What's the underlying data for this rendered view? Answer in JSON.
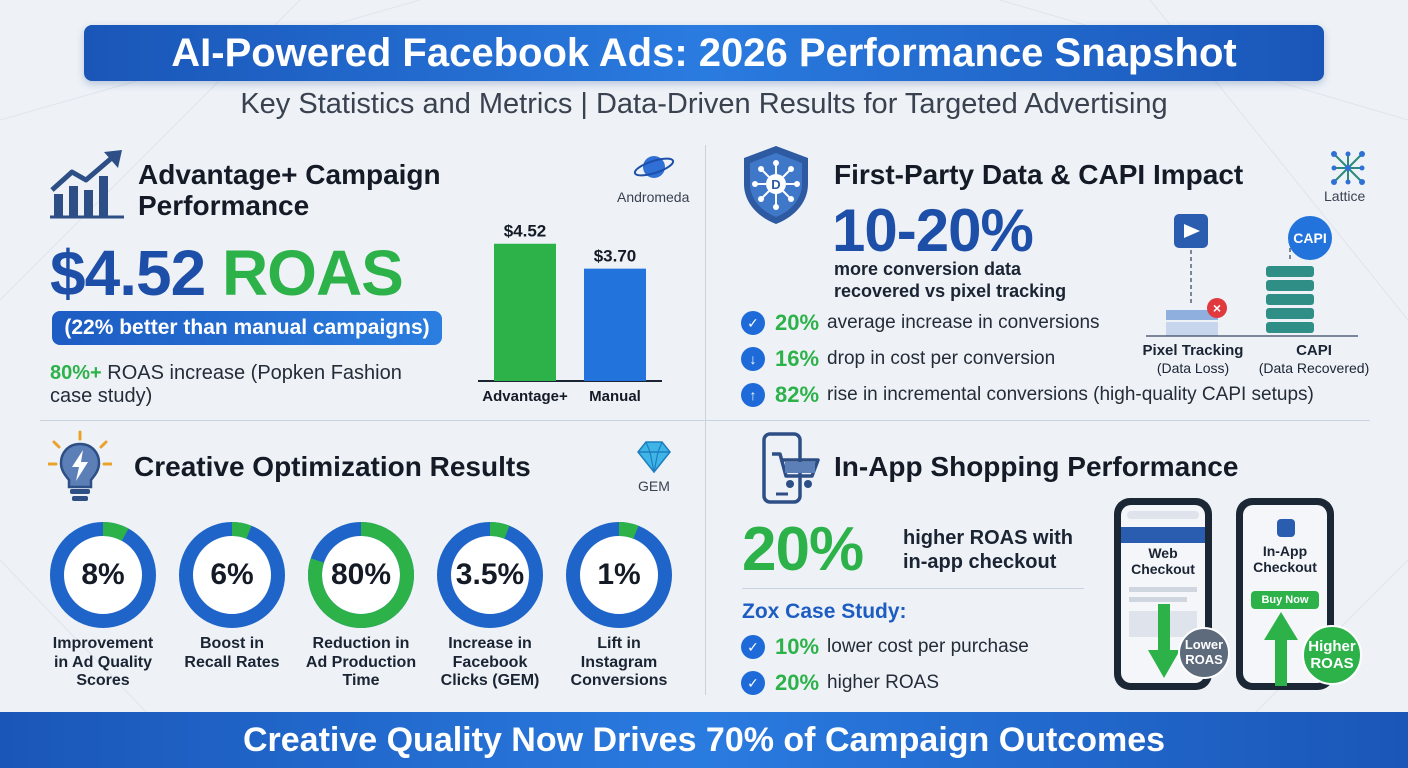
{
  "header": {
    "title": "AI-Powered Facebook Ads: 2026 Performance Snapshot",
    "subtitle": "Key Statistics and Metrics | Data-Driven Results for Targeted Advertising"
  },
  "advantage": {
    "title_line1": "Advantage+ Campaign",
    "title_line2": "Performance",
    "logo_label": "Andromeda",
    "roas_value": "$4.52",
    "roas_unit": "ROAS",
    "pill": "(22% better than manual campaigns)",
    "note_value": "80%+",
    "note_line1": " ROAS increase (Popken Fashion",
    "note_line2": "case study)"
  },
  "chart_data": {
    "type": "bar",
    "categories": [
      "Advantage+",
      "Manual"
    ],
    "values": [
      4.52,
      3.7
    ],
    "value_labels": [
      "$4.52",
      "$3.70"
    ],
    "ylim": [
      0,
      5
    ],
    "colors": [
      "#2db24a",
      "#2274dc"
    ],
    "grid": false,
    "title": "",
    "xlabel": "",
    "ylabel": ""
  },
  "capi": {
    "title": "First-Party Data & CAPI Impact",
    "logo_label": "Lattice",
    "big_value": "10-20%",
    "desc_line1": "more conversion data",
    "desc_line2": "recovered vs pixel tracking",
    "stats": [
      {
        "icon": "check-icon",
        "glyph": "✓",
        "value": "20%",
        "text": "average increase in conversions"
      },
      {
        "icon": "arrow-down-icon",
        "glyph": "↓",
        "value": "16%",
        "text": "drop in cost per conversion"
      },
      {
        "icon": "arrow-up-icon",
        "glyph": "↑",
        "value": "82%",
        "text": "rise in incremental conversions (high-quality CAPI setups)"
      }
    ],
    "pixel_label": "Pixel Tracking",
    "pixel_sub": "(Data Loss)",
    "capi_badge": "CAPI",
    "capi_label": "CAPI",
    "capi_sub": "(Data Recovered)"
  },
  "creative": {
    "title": "Creative Optimization Results",
    "logo_label": "GEM",
    "rings": [
      {
        "value": "8%",
        "fraction": 0.08,
        "label": [
          "Improvement",
          "in Ad Quality",
          "Scores"
        ]
      },
      {
        "value": "6%",
        "fraction": 0.06,
        "label": [
          "Boost in",
          "Recall Rates"
        ]
      },
      {
        "value": "80%",
        "fraction": 0.8,
        "label": [
          "Reduction in",
          "Ad Production",
          "Time"
        ]
      },
      {
        "value": "3.5%",
        "fraction": 0.035,
        "label": [
          "Increase in",
          "Facebook",
          "Clicks (GEM)"
        ]
      },
      {
        "value": "1%",
        "fraction": 0.01,
        "label": [
          "Lift in",
          "Instagram",
          "Conversions"
        ]
      }
    ]
  },
  "inapp": {
    "title": "In-App Shopping Performance",
    "big_value": "20%",
    "desc_line1": "higher ROAS with",
    "desc_line2": "in-app checkout",
    "case_title": "Zox Case Study:",
    "case_items": [
      {
        "value": "10%",
        "text": "lower cost per purchase"
      },
      {
        "value": "20%",
        "text": "higher ROAS"
      }
    ],
    "web_phone_line1": "Web",
    "web_phone_line2": "Checkout",
    "app_phone_line1": "In-App",
    "app_phone_line2": "Checkout",
    "buy_now": "Buy Now",
    "lower_line1": "Lower",
    "lower_line2": "ROAS",
    "higher_line1": "Higher",
    "higher_line2": "ROAS"
  },
  "footer": {
    "text": "Creative Quality Now Drives 70% of Campaign Outcomes"
  }
}
